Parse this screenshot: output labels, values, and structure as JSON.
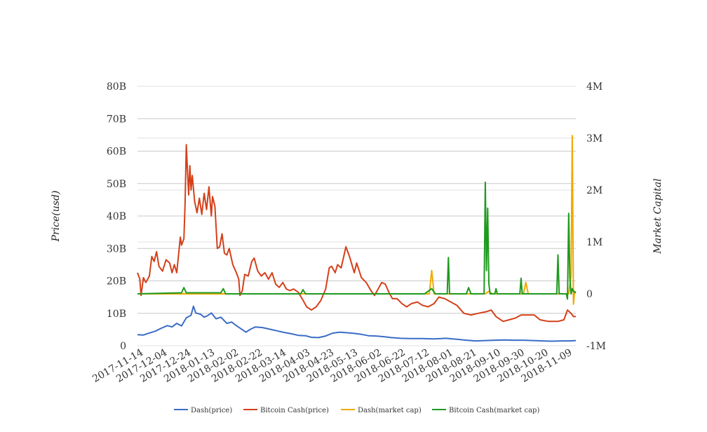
{
  "chart_data": {
    "type": "line",
    "ylabel_left": "Price(usd)",
    "ylabel_right": "Market Capital",
    "y_left": {
      "min": 0,
      "max": 80,
      "ticks": [
        "0",
        "10B",
        "20B",
        "30B",
        "40B",
        "50B",
        "60B",
        "70B",
        "80B"
      ]
    },
    "y_right": {
      "min": -1,
      "max": 4,
      "ticks": [
        "-1M",
        "0",
        "1M",
        "2M",
        "3M",
        "4M"
      ]
    },
    "x_start": "2017-11-11",
    "x_end": "2018-11-14",
    "x_tick_labels": [
      "2017-11-14",
      "2017-12-04",
      "2017-12-24",
      "2018-01-13",
      "2018-02-02",
      "2018-02-22",
      "2018-03-14",
      "2018-04-03",
      "2018-04-23",
      "2018-05-13",
      "2018-06-02",
      "2018-06-22",
      "2018-07-12",
      "2018-08-01",
      "2018-08-21",
      "2018-09-10",
      "2018-09-30",
      "2018-10-20",
      "2018-11-09"
    ],
    "grid": true,
    "legend_position": "bottom",
    "series": [
      {
        "name": "Dash(price)",
        "axis": "left",
        "color": "#3b6cc6",
        "points": [
          [
            "2017-11-11",
            3.4
          ],
          [
            "2017-11-16",
            3.3
          ],
          [
            "2017-11-20",
            3.8
          ],
          [
            "2017-11-26",
            4.5
          ],
          [
            "2017-12-01",
            5.4
          ],
          [
            "2017-12-06",
            6.2
          ],
          [
            "2017-12-10",
            5.8
          ],
          [
            "2017-12-14",
            6.9
          ],
          [
            "2017-12-18",
            6.1
          ],
          [
            "2017-12-22",
            8.6
          ],
          [
            "2017-12-26",
            9.4
          ],
          [
            "2017-12-28",
            12.2
          ],
          [
            "2017-12-30",
            10.1
          ],
          [
            "2018-01-03",
            9.7
          ],
          [
            "2018-01-06",
            8.8
          ],
          [
            "2018-01-09",
            9.3
          ],
          [
            "2018-01-12",
            10.1
          ],
          [
            "2018-01-16",
            8.3
          ],
          [
            "2018-01-20",
            8.8
          ],
          [
            "2018-01-25",
            6.9
          ],
          [
            "2018-01-29",
            7.3
          ],
          [
            "2018-02-02",
            6.2
          ],
          [
            "2018-02-06",
            5.2
          ],
          [
            "2018-02-10",
            4.2
          ],
          [
            "2018-02-14",
            5.1
          ],
          [
            "2018-02-18",
            5.8
          ],
          [
            "2018-02-24",
            5.6
          ],
          [
            "2018-03-02",
            5.1
          ],
          [
            "2018-03-08",
            4.6
          ],
          [
            "2018-03-14",
            4.1
          ],
          [
            "2018-03-20",
            3.7
          ],
          [
            "2018-03-26",
            3.2
          ],
          [
            "2018-04-01",
            3.1
          ],
          [
            "2018-04-06",
            2.6
          ],
          [
            "2018-04-12",
            2.5
          ],
          [
            "2018-04-18",
            3.0
          ],
          [
            "2018-04-24",
            3.9
          ],
          [
            "2018-04-30",
            4.2
          ],
          [
            "2018-05-06",
            4.0
          ],
          [
            "2018-05-12",
            3.8
          ],
          [
            "2018-05-18",
            3.5
          ],
          [
            "2018-05-24",
            3.1
          ],
          [
            "2018-05-30",
            3.0
          ],
          [
            "2018-06-06",
            2.8
          ],
          [
            "2018-06-12",
            2.5
          ],
          [
            "2018-06-20",
            2.3
          ],
          [
            "2018-06-28",
            2.2
          ],
          [
            "2018-07-08",
            2.2
          ],
          [
            "2018-07-18",
            2.1
          ],
          [
            "2018-07-28",
            2.3
          ],
          [
            "2018-08-06",
            2.0
          ],
          [
            "2018-08-14",
            1.7
          ],
          [
            "2018-08-22",
            1.5
          ],
          [
            "2018-08-30",
            1.6
          ],
          [
            "2018-09-07",
            1.7
          ],
          [
            "2018-09-15",
            1.8
          ],
          [
            "2018-09-23",
            1.7
          ],
          [
            "2018-10-01",
            1.7
          ],
          [
            "2018-10-09",
            1.6
          ],
          [
            "2018-10-17",
            1.5
          ],
          [
            "2018-10-25",
            1.4
          ],
          [
            "2018-11-02",
            1.5
          ],
          [
            "2018-11-09",
            1.5
          ],
          [
            "2018-11-14",
            1.6
          ]
        ]
      },
      {
        "name": "Bitcoin Cash(price)",
        "axis": "left",
        "color": "#d4401a",
        "points": [
          [
            "2017-11-11",
            22.5
          ],
          [
            "2017-11-13",
            20.5
          ],
          [
            "2017-11-14",
            15.5
          ],
          [
            "2017-11-16",
            21.0
          ],
          [
            "2017-11-18",
            19.5
          ],
          [
            "2017-11-21",
            21.5
          ],
          [
            "2017-11-23",
            27.5
          ],
          [
            "2017-11-25",
            26.0
          ],
          [
            "2017-11-27",
            29.0
          ],
          [
            "2017-11-29",
            24.5
          ],
          [
            "2017-12-02",
            23.0
          ],
          [
            "2017-12-05",
            26.5
          ],
          [
            "2017-12-08",
            25.5
          ],
          [
            "2017-12-10",
            22.5
          ],
          [
            "2017-12-12",
            25.0
          ],
          [
            "2017-12-14",
            22.5
          ],
          [
            "2017-12-17",
            33.5
          ],
          [
            "2017-12-18",
            31.0
          ],
          [
            "2017-12-20",
            33.0
          ],
          [
            "2017-12-21",
            44.0
          ],
          [
            "2017-12-22",
            62.0
          ],
          [
            "2017-12-23",
            54.0
          ],
          [
            "2017-12-24",
            46.5
          ],
          [
            "2017-12-25",
            55.5
          ],
          [
            "2017-12-26",
            48.0
          ],
          [
            "2017-12-27",
            52.5
          ],
          [
            "2017-12-29",
            44.5
          ],
          [
            "2017-12-31",
            41.0
          ],
          [
            "2018-01-02",
            45.5
          ],
          [
            "2018-01-04",
            40.5
          ],
          [
            "2018-01-06",
            47.0
          ],
          [
            "2018-01-08",
            42.0
          ],
          [
            "2018-01-10",
            49.0
          ],
          [
            "2018-01-12",
            40.0
          ],
          [
            "2018-01-13",
            46.0
          ],
          [
            "2018-01-15",
            43.0
          ],
          [
            "2018-01-17",
            30.0
          ],
          [
            "2018-01-19",
            30.5
          ],
          [
            "2018-01-21",
            34.5
          ],
          [
            "2018-01-23",
            28.5
          ],
          [
            "2018-01-25",
            28.0
          ],
          [
            "2018-01-27",
            30.0
          ],
          [
            "2018-01-30",
            25.0
          ],
          [
            "2018-02-02",
            22.5
          ],
          [
            "2018-02-04",
            20.5
          ],
          [
            "2018-02-05",
            15.5
          ],
          [
            "2018-02-07",
            17.0
          ],
          [
            "2018-02-09",
            22.0
          ],
          [
            "2018-02-12",
            21.5
          ],
          [
            "2018-02-15",
            26.0
          ],
          [
            "2018-02-17",
            27.0
          ],
          [
            "2018-02-20",
            23.0
          ],
          [
            "2018-02-23",
            21.5
          ],
          [
            "2018-02-26",
            22.5
          ],
          [
            "2018-03-01",
            20.5
          ],
          [
            "2018-03-04",
            22.5
          ],
          [
            "2018-03-07",
            19.0
          ],
          [
            "2018-03-10",
            18.0
          ],
          [
            "2018-03-13",
            19.5
          ],
          [
            "2018-03-16",
            17.5
          ],
          [
            "2018-03-19",
            17.0
          ],
          [
            "2018-03-22",
            17.5
          ],
          [
            "2018-03-26",
            16.5
          ],
          [
            "2018-03-30",
            14.0
          ],
          [
            "2018-04-02",
            12.0
          ],
          [
            "2018-04-06",
            11.0
          ],
          [
            "2018-04-10",
            12.0
          ],
          [
            "2018-04-14",
            14.0
          ],
          [
            "2018-04-18",
            17.5
          ],
          [
            "2018-04-21",
            24.0
          ],
          [
            "2018-04-23",
            24.5
          ],
          [
            "2018-04-26",
            22.5
          ],
          [
            "2018-04-28",
            25.0
          ],
          [
            "2018-05-01",
            24.0
          ],
          [
            "2018-05-05",
            30.5
          ],
          [
            "2018-05-08",
            27.5
          ],
          [
            "2018-05-12",
            22.5
          ],
          [
            "2018-05-14",
            25.5
          ],
          [
            "2018-05-18",
            21.0
          ],
          [
            "2018-05-22",
            19.5
          ],
          [
            "2018-05-26",
            17.0
          ],
          [
            "2018-05-29",
            15.5
          ],
          [
            "2018-06-01",
            17.5
          ],
          [
            "2018-06-04",
            19.5
          ],
          [
            "2018-06-07",
            19.0
          ],
          [
            "2018-06-10",
            16.5
          ],
          [
            "2018-06-13",
            14.5
          ],
          [
            "2018-06-17",
            14.5
          ],
          [
            "2018-06-21",
            13.0
          ],
          [
            "2018-06-25",
            12.0
          ],
          [
            "2018-06-29",
            13.0
          ],
          [
            "2018-07-04",
            13.5
          ],
          [
            "2018-07-08",
            12.5
          ],
          [
            "2018-07-13",
            12.0
          ],
          [
            "2018-07-18",
            13.0
          ],
          [
            "2018-07-22",
            15.0
          ],
          [
            "2018-07-27",
            14.5
          ],
          [
            "2018-08-01",
            13.5
          ],
          [
            "2018-08-06",
            12.5
          ],
          [
            "2018-08-12",
            10.0
          ],
          [
            "2018-08-18",
            9.5
          ],
          [
            "2018-08-24",
            10.0
          ],
          [
            "2018-08-31",
            10.5
          ],
          [
            "2018-09-04",
            11.0
          ],
          [
            "2018-09-08",
            9.0
          ],
          [
            "2018-09-14",
            7.5
          ],
          [
            "2018-09-19",
            8.0
          ],
          [
            "2018-09-24",
            8.5
          ],
          [
            "2018-09-29",
            9.5
          ],
          [
            "2018-10-04",
            9.5
          ],
          [
            "2018-10-10",
            9.5
          ],
          [
            "2018-10-15",
            8.0
          ],
          [
            "2018-10-22",
            7.5
          ],
          [
            "2018-10-30",
            7.5
          ],
          [
            "2018-11-04",
            8.0
          ],
          [
            "2018-11-07",
            11.0
          ],
          [
            "2018-11-10",
            10.0
          ],
          [
            "2018-11-12",
            9.0
          ],
          [
            "2018-11-14",
            9.0
          ]
        ]
      },
      {
        "name": "Dash(market cap)",
        "axis": "right",
        "color": "#f0a800",
        "points": [
          [
            "2017-11-11",
            0.0
          ],
          [
            "2018-07-14",
            0.0
          ],
          [
            "2018-07-16",
            0.45
          ],
          [
            "2018-07-18",
            0.0
          ],
          [
            "2018-08-30",
            0.0
          ],
          [
            "2018-09-02",
            0.05
          ],
          [
            "2018-09-05",
            0.0
          ],
          [
            "2018-10-01",
            0.0
          ],
          [
            "2018-10-03",
            0.22
          ],
          [
            "2018-10-05",
            0.0
          ],
          [
            "2018-11-08",
            0.0
          ],
          [
            "2018-11-10",
            0.35
          ],
          [
            "2018-11-11",
            3.05
          ],
          [
            "2018-11-12",
            -0.2
          ],
          [
            "2018-11-13",
            0.05
          ],
          [
            "2018-11-14",
            0.02
          ]
        ]
      },
      {
        "name": "Bitcoin Cash(market cap)",
        "axis": "right",
        "color": "#1f9a1f",
        "points": [
          [
            "2017-11-11",
            0.0
          ],
          [
            "2017-12-18",
            0.02
          ],
          [
            "2017-12-20",
            0.12
          ],
          [
            "2017-12-22",
            0.02
          ],
          [
            "2018-01-20",
            0.02
          ],
          [
            "2018-01-22",
            0.1
          ],
          [
            "2018-01-24",
            0.0
          ],
          [
            "2018-03-28",
            0.0
          ],
          [
            "2018-03-30",
            0.08
          ],
          [
            "2018-04-01",
            0.0
          ],
          [
            "2018-07-10",
            0.0
          ],
          [
            "2018-07-13",
            0.05
          ],
          [
            "2018-07-16",
            0.1
          ],
          [
            "2018-07-19",
            0.0
          ],
          [
            "2018-07-29",
            0.0
          ],
          [
            "2018-07-30",
            0.7
          ],
          [
            "2018-07-31",
            0.0
          ],
          [
            "2018-08-14",
            0.0
          ],
          [
            "2018-08-16",
            0.12
          ],
          [
            "2018-08-18",
            0.0
          ],
          [
            "2018-08-29",
            0.0
          ],
          [
            "2018-08-30",
            2.15
          ],
          [
            "2018-08-31",
            0.45
          ],
          [
            "2018-09-01",
            1.65
          ],
          [
            "2018-09-02",
            0.2
          ],
          [
            "2018-09-03",
            0.0
          ],
          [
            "2018-09-07",
            0.0
          ],
          [
            "2018-09-08",
            0.1
          ],
          [
            "2018-09-09",
            0.0
          ],
          [
            "2018-09-28",
            0.0
          ],
          [
            "2018-09-29",
            0.3
          ],
          [
            "2018-09-30",
            0.0
          ],
          [
            "2018-10-29",
            0.0
          ],
          [
            "2018-10-30",
            0.75
          ],
          [
            "2018-10-31",
            0.0
          ],
          [
            "2018-11-06",
            0.0
          ],
          [
            "2018-11-07",
            -0.1
          ],
          [
            "2018-11-08",
            1.55
          ],
          [
            "2018-11-09",
            0.3
          ],
          [
            "2018-11-10",
            0.0
          ],
          [
            "2018-11-11",
            0.1
          ],
          [
            "2018-11-12",
            0.05
          ],
          [
            "2018-11-14",
            0.02
          ]
        ]
      }
    ]
  }
}
